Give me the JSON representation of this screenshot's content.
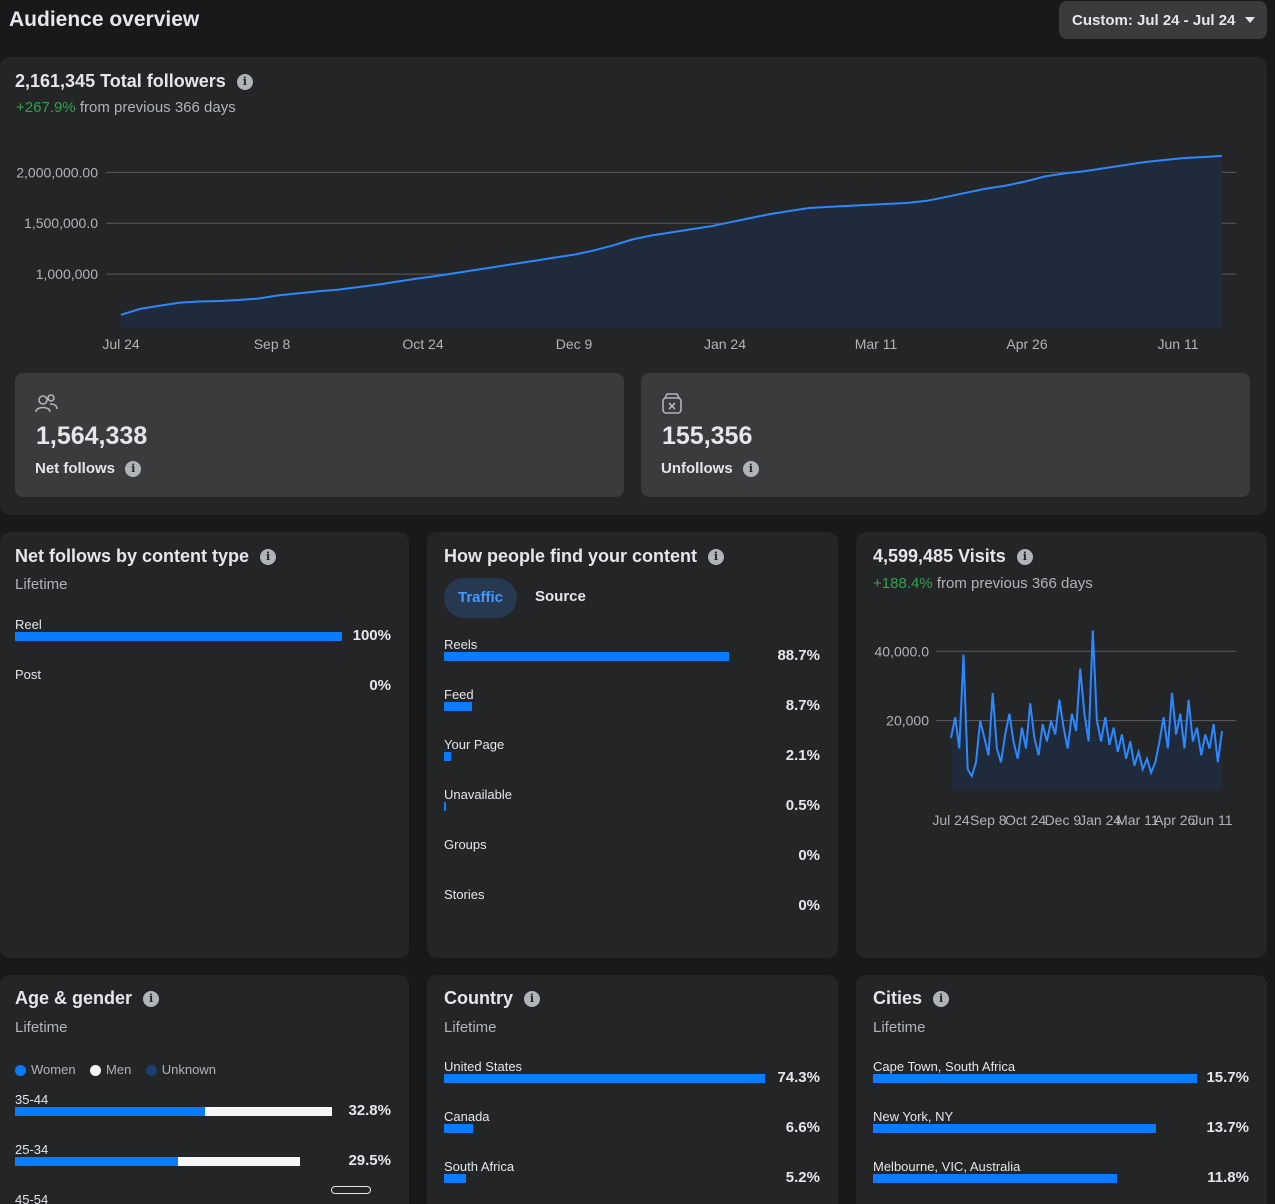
{
  "page": {
    "title": "Audience overview",
    "date_range": "Custom: Jul 24 - Jul 24"
  },
  "followers": {
    "total": "2,161,345",
    "total_label": "Total followers",
    "change": "+267.9%",
    "change_suffix": "from previous 366 days",
    "net_follows": "1,564,338",
    "net_follows_label": "Net follows",
    "unfollows": "155,356",
    "unfollows_label": "Unfollows"
  },
  "colors": {
    "accent": "#0a7cff",
    "line": "#2d88ff",
    "green": "#31a24c",
    "card": "#242526"
  },
  "chart_data": [
    {
      "type": "area",
      "y_tick_labels": [
        "2,000,000.00",
        "1,500,000.0",
        "1,000,000"
      ],
      "y_ticks": [
        2000000,
        1500000,
        1000000
      ],
      "x_tick_labels": [
        "Jul 24",
        "Sep 8",
        "Oct 24",
        "Dec 9",
        "Jan 24",
        "Mar 11",
        "Apr 26",
        "Jun 11"
      ],
      "ylim": [
        470000,
        2200000
      ],
      "grid": true,
      "values": [
        600000,
        660000,
        690000,
        720000,
        730000,
        735000,
        745000,
        760000,
        790000,
        810000,
        830000,
        845000,
        870000,
        895000,
        925000,
        955000,
        980000,
        1010000,
        1040000,
        1070000,
        1100000,
        1130000,
        1160000,
        1190000,
        1230000,
        1280000,
        1340000,
        1380000,
        1410000,
        1440000,
        1470000,
        1510000,
        1550000,
        1590000,
        1620000,
        1650000,
        1660000,
        1670000,
        1680000,
        1690000,
        1700000,
        1720000,
        1760000,
        1800000,
        1840000,
        1870000,
        1910000,
        1960000,
        1990000,
        2010000,
        2040000,
        2070000,
        2100000,
        2120000,
        2140000,
        2150000,
        2161345
      ]
    },
    {
      "type": "line",
      "y_tick_labels": [
        "40,000.0",
        "20,000"
      ],
      "y_ticks": [
        40000,
        20000
      ],
      "x_tick_labels": [
        "Jul 24",
        "Sep 8",
        "Oct 24",
        "Dec 9",
        "Jan 24",
        "Mar 11",
        "Apr 26",
        "Jun 11"
      ],
      "ylim": [
        0,
        47000
      ],
      "grid": true,
      "values": [
        15000,
        21000,
        12000,
        39000,
        6000,
        4000,
        8000,
        20000,
        15000,
        10000,
        28000,
        12000,
        8000,
        16000,
        22000,
        14000,
        9000,
        18000,
        12000,
        25000,
        15000,
        10000,
        19000,
        14000,
        20000,
        16000,
        26000,
        18000,
        12000,
        22000,
        17000,
        35000,
        22000,
        14000,
        46000,
        20000,
        14000,
        21000,
        13000,
        18000,
        11000,
        16000,
        9000,
        14000,
        7000,
        11000,
        6000,
        9000,
        5000,
        8000,
        14000,
        21000,
        12000,
        28000,
        16000,
        22000,
        12000,
        26000,
        14000,
        18000,
        10000,
        16000,
        12000,
        19000,
        8000,
        17000
      ]
    }
  ],
  "visits": {
    "total": "4,599,485",
    "label": "Visits",
    "change": "+188.4%",
    "change_suffix": "from previous 366 days"
  },
  "content_type": {
    "title": "Net follows by content type",
    "subtitle": "Lifetime",
    "rows": [
      {
        "label": "Reel",
        "pct": "100%",
        "value": 1.0
      },
      {
        "label": "Post",
        "pct": "0%",
        "value": 0.0
      }
    ]
  },
  "find_content": {
    "title": "How people find your content",
    "tabs": [
      "Traffic",
      "Source"
    ],
    "rows": [
      {
        "label": "Reels",
        "pct": "88.7%",
        "value": 0.887
      },
      {
        "label": "Feed",
        "pct": "8.7%",
        "value": 0.087
      },
      {
        "label": "Your Page",
        "pct": "2.1%",
        "value": 0.021
      },
      {
        "label": "Unavailable",
        "pct": "0.5%",
        "value": 0.005
      },
      {
        "label": "Groups",
        "pct": "0%",
        "value": 0.0
      },
      {
        "label": "Stories",
        "pct": "0%",
        "value": 0.0
      }
    ]
  },
  "age_gender": {
    "title": "Age & gender",
    "subtitle": "Lifetime",
    "legend": [
      "Women",
      "Men",
      "Unknown"
    ],
    "rows": [
      {
        "label": "35-44",
        "pct": "32.8%",
        "women": 0.6,
        "men": 0.4,
        "total": 1.0
      },
      {
        "label": "25-34",
        "pct": "29.5%",
        "women": 0.57,
        "men": 0.43,
        "total": 0.9
      },
      {
        "label": "45-54",
        "pct": "",
        "women": 0,
        "men": 0,
        "total": 0
      }
    ]
  },
  "country": {
    "title": "Country",
    "subtitle": "Lifetime",
    "rows": [
      {
        "label": "United States",
        "pct": "74.3%",
        "value": 1.0
      },
      {
        "label": "Canada",
        "pct": "6.6%",
        "value": 0.089
      },
      {
        "label": "South Africa",
        "pct": "5.2%",
        "value": 0.07
      }
    ]
  },
  "cities": {
    "title": "Cities",
    "subtitle": "Lifetime",
    "rows": [
      {
        "label": "Cape Town, South Africa",
        "pct": "15.7%",
        "value": 1.0
      },
      {
        "label": "New York, NY",
        "pct": "13.7%",
        "value": 0.873
      },
      {
        "label": "Melbourne, VIC, Australia",
        "pct": "11.8%",
        "value": 0.752
      }
    ]
  }
}
